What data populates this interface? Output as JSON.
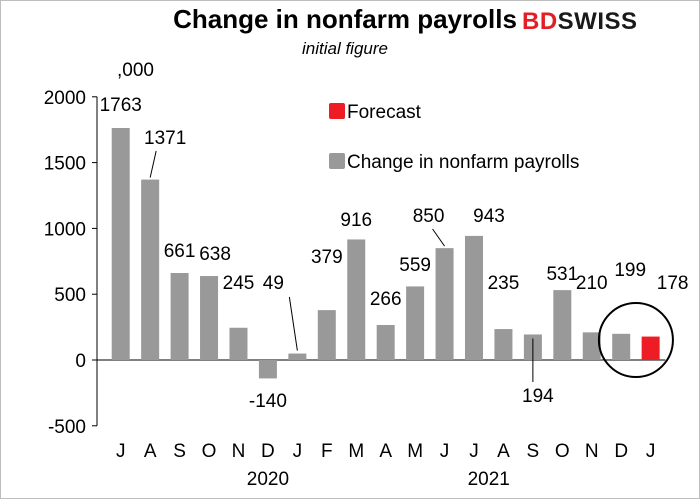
{
  "title": "Change in nonfarm payrolls",
  "subtitle": "initial figure",
  "unit_label": ",000",
  "logo": {
    "part1": "BD",
    "part2": "SWISS"
  },
  "colors": {
    "actual": "#999999",
    "forecast": "#ee1c25",
    "logo_red": "#e31e24"
  },
  "chart_data": {
    "type": "bar",
    "categories": [
      "J",
      "A",
      "S",
      "O",
      "N",
      "D",
      "J",
      "F",
      "M",
      "A",
      "M",
      "J",
      "J",
      "A",
      "S",
      "O",
      "N",
      "D",
      "J"
    ],
    "values": [
      1763,
      1371,
      661,
      638,
      245,
      -140,
      49,
      379,
      916,
      266,
      559,
      850,
      943,
      235,
      194,
      531,
      210,
      199,
      178
    ],
    "data_labels": [
      "1763",
      "1371",
      "661",
      "638",
      "245",
      "-140",
      "49",
      "379",
      "916",
      "266",
      "559",
      "850",
      "943",
      "235",
      "194",
      "531",
      "210",
      "199",
      "178"
    ],
    "forecast_index": 18,
    "series": [
      {
        "name": "Forecast",
        "color": "#ee1c25"
      },
      {
        "name": "Change in nonfarm payrolls",
        "color": "#999999"
      }
    ],
    "year_labels": [
      {
        "label": "2020",
        "center_category_index": 5
      },
      {
        "label": "2021",
        "center_category_index": 12.5
      }
    ],
    "ylim": [
      -500,
      2000
    ],
    "yticks": [
      -500,
      0,
      500,
      1000,
      1500,
      2000
    ],
    "ytick_labels": [
      "-500",
      "0",
      "500",
      "1000",
      "1500",
      "2000"
    ],
    "legend_position": "upper-right inside plot",
    "highlight": "circle around last two bars"
  }
}
